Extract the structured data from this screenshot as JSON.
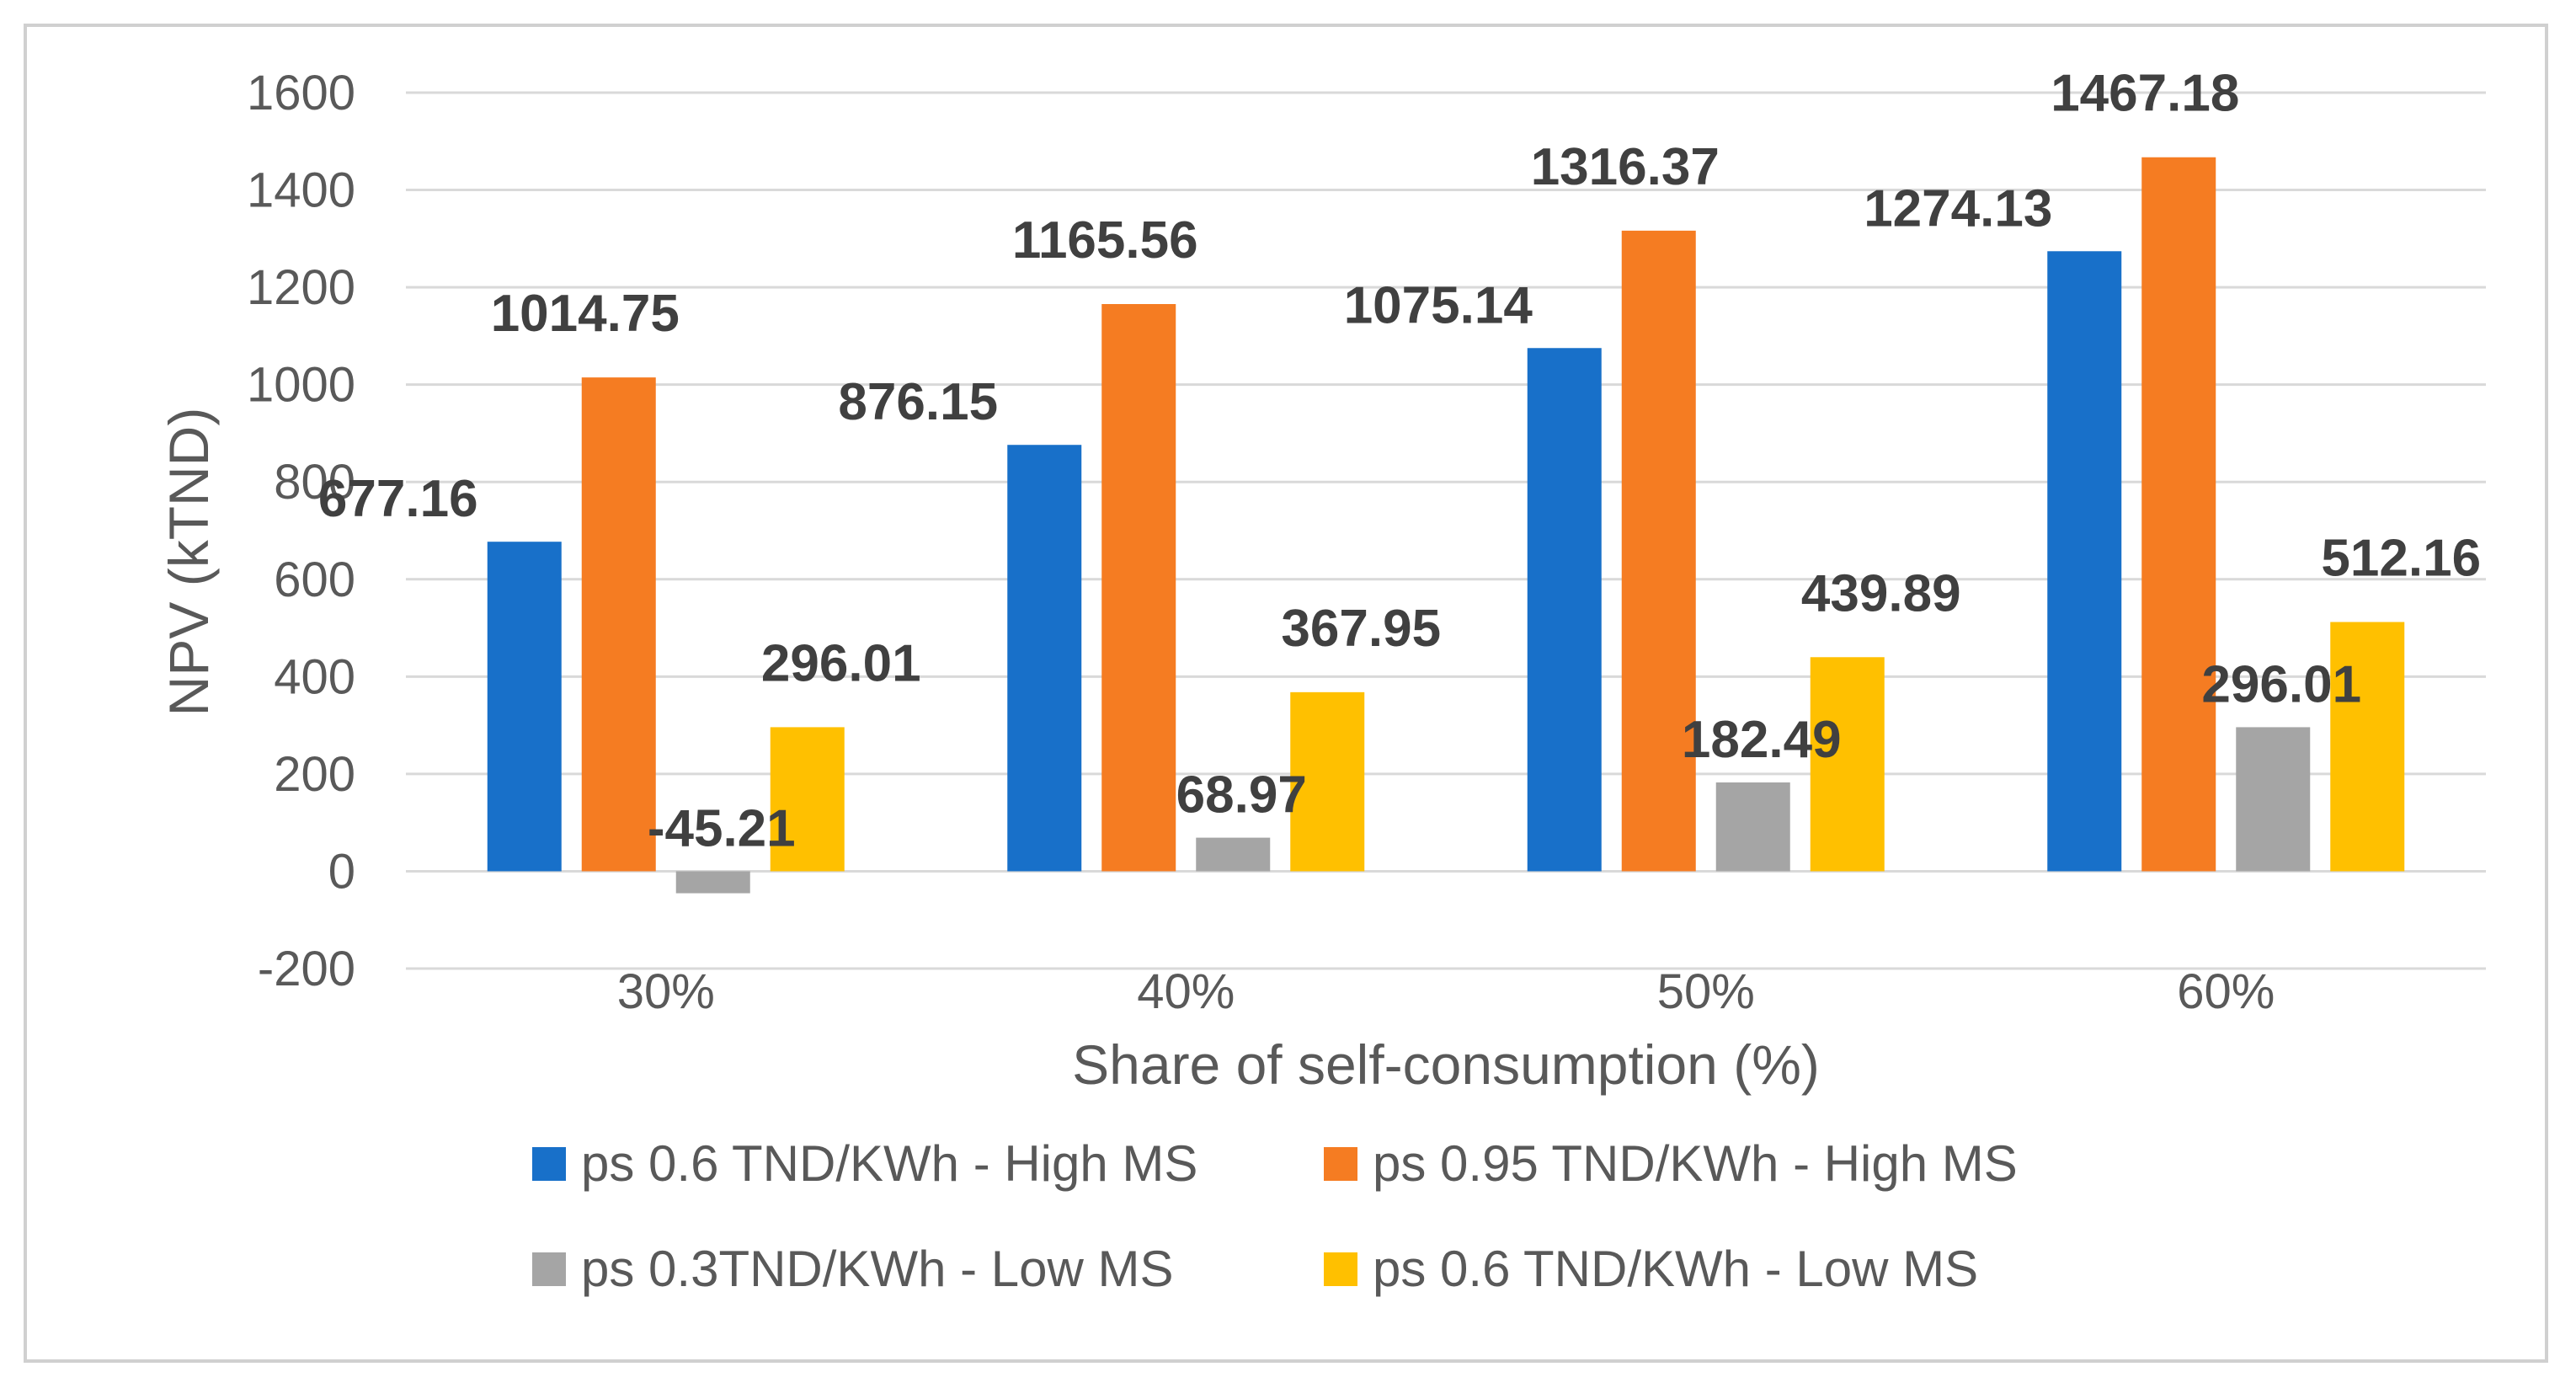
{
  "chart_data": {
    "type": "bar",
    "title": "",
    "xlabel": "Share of self-consumption (%)",
    "ylabel": "NPV (kTND)",
    "ylim": [
      -200,
      1600
    ],
    "yticks": [
      -200,
      0,
      200,
      400,
      600,
      800,
      1000,
      1200,
      1400,
      1600
    ],
    "ytick_labels": [
      "-200",
      "0",
      "200",
      "400",
      "600",
      "800",
      "1000",
      "1200",
      "1400",
      "1600"
    ],
    "grid": true,
    "legend_position": "bottom",
    "categories": [
      "30%",
      "40%",
      "50%",
      "60%"
    ],
    "series": [
      {
        "name": "ps 0.6 TND/KWh - High MS",
        "color": "#1870c9",
        "values": [
          677.16,
          876.15,
          1075.14,
          1274.13
        ],
        "labels": [
          "677.16",
          "876.15",
          "1075.14",
          "1274.13"
        ]
      },
      {
        "name": "ps 0.95 TND/KWh - High MS",
        "color": "#f57c22",
        "values": [
          1014.75,
          1165.56,
          1316.37,
          1467.18
        ],
        "labels": [
          "1014.75",
          "1165.56",
          "1316.37",
          "1467.18"
        ]
      },
      {
        "name": "ps 0.3TND/KWh - Low MS",
        "color": "#a5a5a5",
        "values": [
          -45.21,
          68.97,
          182.49,
          296.01
        ],
        "labels": [
          "-45.21",
          "68.97",
          "182.49",
          "296.01"
        ]
      },
      {
        "name": "ps 0.6 TND/KWh - Low MS",
        "color": "#ffc000",
        "values": [
          296.01,
          367.95,
          439.89,
          512.16
        ],
        "labels": [
          "296.01",
          "367.95",
          "439.89",
          "512.16"
        ]
      }
    ]
  }
}
